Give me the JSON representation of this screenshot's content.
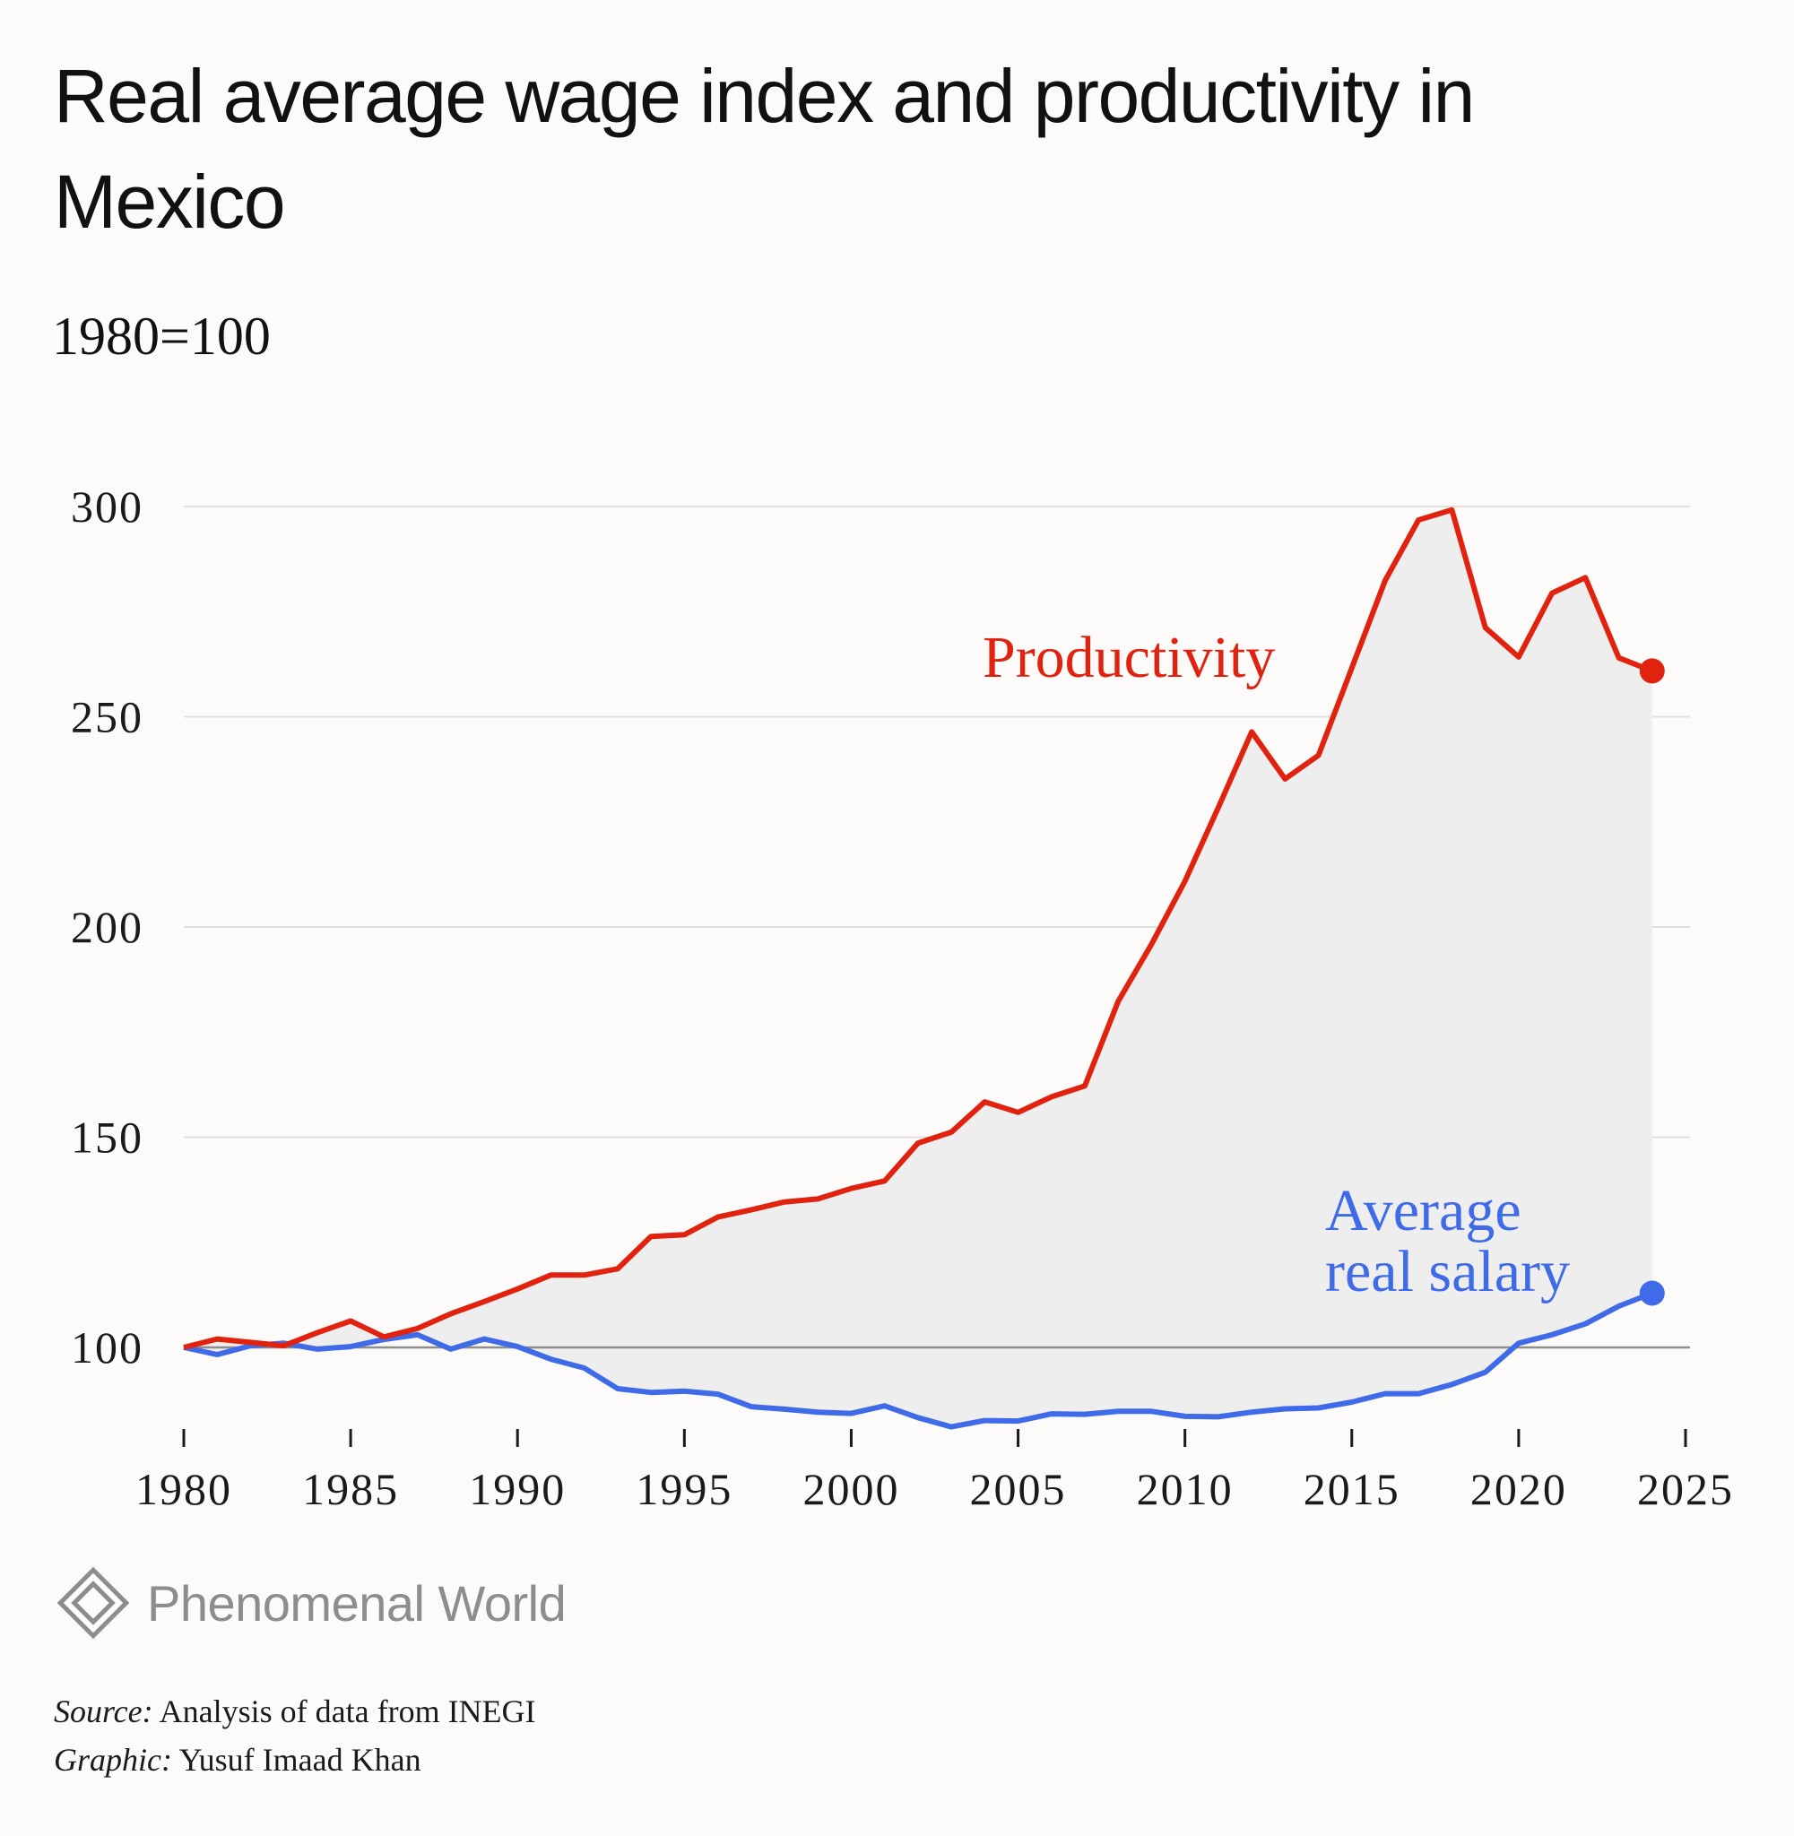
{
  "page": {
    "title": "Real average wage index and productivity in Mexico",
    "subtitle": "1980=100"
  },
  "branding": {
    "logo_text": "Phenomenal World",
    "logo_icon": "diamond-logo-icon"
  },
  "footer": {
    "source_label": "Source:",
    "source_text": "Analysis of data from INEGI",
    "graphic_label": "Graphic:",
    "graphic_text": "Yusuf Imaad Khan"
  },
  "colors": {
    "productivity": "#e0220f",
    "salary": "#3f6ae8",
    "fill": "#efeeee",
    "gridline": "#e2e0de",
    "baseline": "#8e8e8e",
    "axis": "#1a1a1a"
  },
  "chart_data": {
    "type": "line",
    "title": "Real average wage index and productivity in Mexico",
    "subtitle": "1980=100",
    "xlabel": "",
    "ylabel": "",
    "xlim": [
      1980,
      2025
    ],
    "ylim": [
      82,
      300
    ],
    "x_ticks": [
      1980,
      1985,
      1990,
      1995,
      2000,
      2005,
      2010,
      2015,
      2020,
      2025
    ],
    "y_ticks": [
      100,
      150,
      200,
      250,
      300
    ],
    "grid": true,
    "legend": "direct labels",
    "x": [
      1980,
      1981,
      1982,
      1983,
      1984,
      1985,
      1986,
      1987,
      1988,
      1989,
      1990,
      1991,
      1992,
      1993,
      1994,
      1995,
      1996,
      1997,
      1998,
      1999,
      2000,
      2001,
      2002,
      2003,
      2004,
      2005,
      2006,
      2007,
      2008,
      2009,
      2010,
      2011,
      2012,
      2013,
      2014,
      2015,
      2016,
      2017,
      2018,
      2019,
      2020,
      2021,
      2022,
      2023,
      2024
    ],
    "series": [
      {
        "name": "Productivity",
        "values": [
          100.0,
          102.0,
          101.2,
          100.4,
          103.5,
          106.3,
          102.5,
          104.5,
          108.0,
          110.9,
          113.9,
          117.2,
          117.2,
          118.7,
          126.4,
          126.8,
          131.0,
          132.7,
          134.6,
          135.3,
          137.8,
          139.6,
          148.6,
          151.2,
          158.4,
          155.9,
          159.6,
          162.2,
          182.3,
          195.9,
          210.9,
          228.4,
          246.4,
          235.2,
          240.8,
          261.6,
          282.4,
          296.8,
          299.2,
          271.2,
          264.2,
          279.4,
          283.1,
          264.0,
          260.9
        ]
      },
      {
        "name": "Average real salary",
        "values": [
          100.0,
          98.3,
          100.4,
          101.0,
          99.6,
          100.2,
          101.9,
          103.0,
          99.6,
          102.0,
          100.2,
          97.2,
          95.1,
          90.2,
          89.3,
          89.6,
          88.9,
          85.9,
          85.3,
          84.6,
          84.3,
          86.1,
          83.3,
          81.1,
          82.6,
          82.5,
          84.2,
          84.1,
          84.8,
          84.8,
          83.6,
          83.5,
          84.6,
          85.4,
          85.6,
          87.0,
          89.0,
          89.0,
          91.2,
          94.1,
          101.0,
          103.0,
          105.6,
          109.8,
          112.9
        ]
      }
    ]
  }
}
